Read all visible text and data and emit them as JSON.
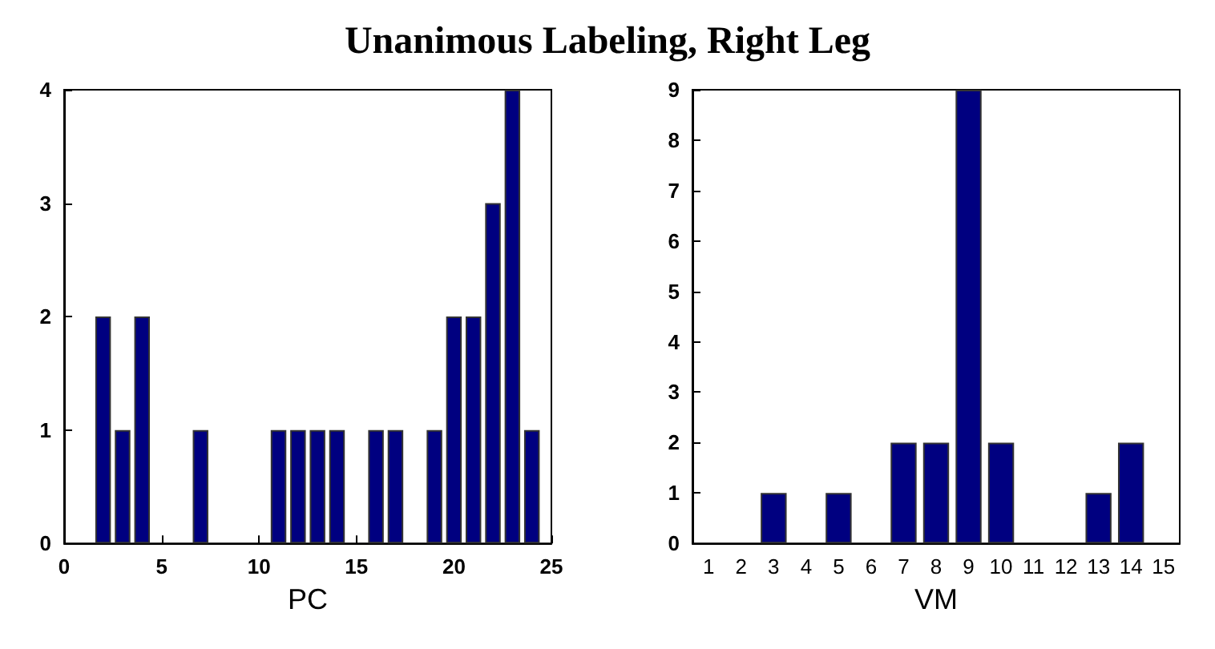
{
  "chart_data": [
    {
      "type": "bar",
      "title": "Unanimous Labeling, Right Leg",
      "xlabel": "PC",
      "x": [
        2,
        3,
        4,
        7,
        11,
        12,
        13,
        14,
        16,
        17,
        19,
        20,
        21,
        22,
        23,
        24
      ],
      "values": [
        2,
        1,
        2,
        1,
        1,
        1,
        1,
        1,
        1,
        1,
        1,
        2,
        2,
        3,
        4,
        1
      ],
      "color": "#000080",
      "xlim": [
        0,
        25
      ],
      "xticks": [
        0,
        5,
        10,
        15,
        20,
        25
      ],
      "ylim": [
        0,
        4
      ],
      "yticks": [
        0,
        1,
        2,
        3,
        4
      ]
    },
    {
      "type": "bar",
      "xlabel": "VM",
      "categories": [
        "1",
        "2",
        "3",
        "4",
        "5",
        "6",
        "7",
        "8",
        "9",
        "10",
        "11",
        "12",
        "13",
        "14",
        "15"
      ],
      "values": [
        0,
        0,
        1,
        0,
        1,
        0,
        2,
        2,
        9,
        2,
        0,
        0,
        1,
        2,
        0
      ],
      "color": "#000080",
      "ylim": [
        0,
        9
      ],
      "yticks": [
        0,
        1,
        2,
        3,
        4,
        5,
        6,
        7,
        8,
        9
      ]
    }
  ]
}
